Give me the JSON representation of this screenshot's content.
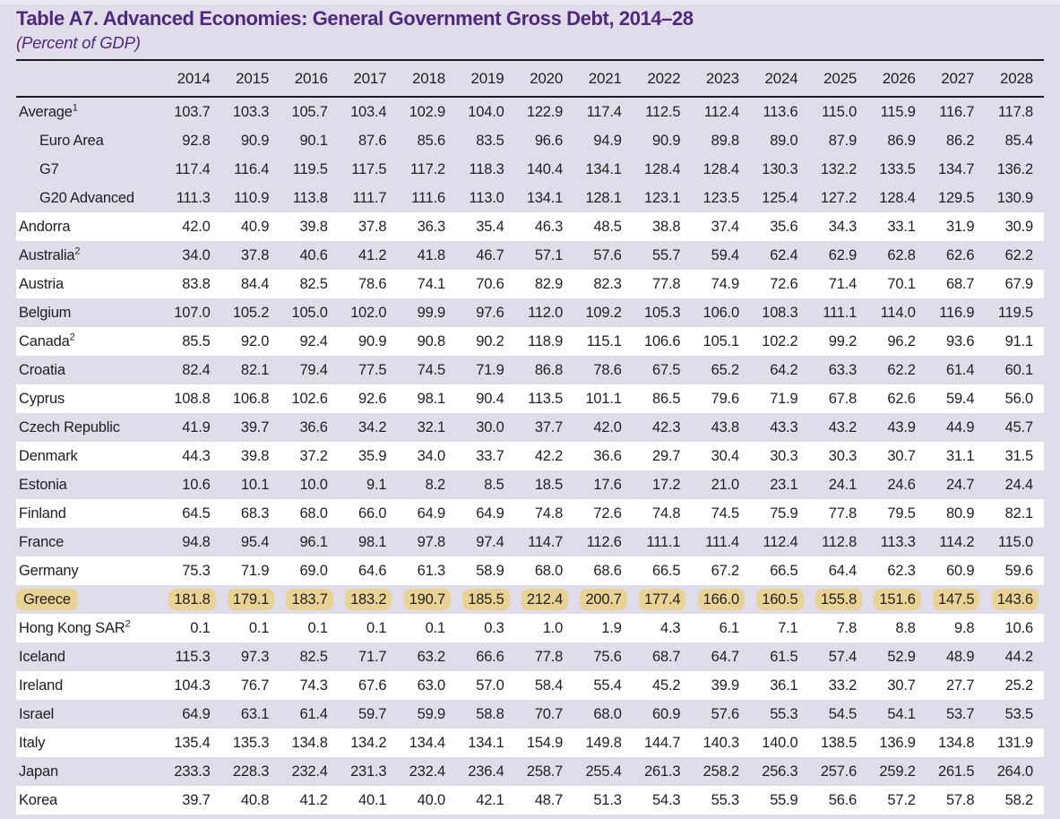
{
  "table": {
    "title": "Table A7. Advanced Economies: General Government Gross Debt, 2014–28",
    "subtitle": "(Percent of GDP)",
    "unit": "Percent of GDP",
    "years": [
      "2014",
      "2015",
      "2016",
      "2017",
      "2018",
      "2019",
      "2020",
      "2021",
      "2022",
      "2023",
      "2024",
      "2025",
      "2026",
      "2027",
      "2028"
    ],
    "rows": [
      {
        "label": "Average",
        "sup": "1",
        "aggregate": true,
        "indent": false,
        "highlight": false,
        "values": [
          "103.7",
          "103.3",
          "105.7",
          "103.4",
          "102.9",
          "104.0",
          "122.9",
          "117.4",
          "112.5",
          "112.4",
          "113.6",
          "115.0",
          "115.9",
          "116.7",
          "117.8"
        ]
      },
      {
        "label": "Euro Area",
        "sup": "",
        "aggregate": true,
        "indent": true,
        "highlight": false,
        "values": [
          "92.8",
          "90.9",
          "90.1",
          "87.6",
          "85.6",
          "83.5",
          "96.6",
          "94.9",
          "90.9",
          "89.8",
          "89.0",
          "87.9",
          "86.9",
          "86.2",
          "85.4"
        ]
      },
      {
        "label": "G7",
        "sup": "",
        "aggregate": true,
        "indent": true,
        "highlight": false,
        "values": [
          "117.4",
          "116.4",
          "119.5",
          "117.5",
          "117.2",
          "118.3",
          "140.4",
          "134.1",
          "128.4",
          "128.4",
          "130.3",
          "132.2",
          "133.5",
          "134.7",
          "136.2"
        ]
      },
      {
        "label": "G20 Advanced",
        "sup": "",
        "aggregate": true,
        "indent": true,
        "highlight": false,
        "values": [
          "111.3",
          "110.9",
          "113.8",
          "111.7",
          "111.6",
          "113.0",
          "134.1",
          "128.1",
          "123.1",
          "123.5",
          "125.4",
          "127.2",
          "128.4",
          "129.5",
          "130.9"
        ]
      },
      {
        "label": "Andorra",
        "sup": "",
        "aggregate": false,
        "indent": false,
        "highlight": false,
        "values": [
          "42.0",
          "40.9",
          "39.8",
          "37.8",
          "36.3",
          "35.4",
          "46.3",
          "48.5",
          "38.8",
          "37.4",
          "35.6",
          "34.3",
          "33.1",
          "31.9",
          "30.9"
        ]
      },
      {
        "label": "Australia",
        "sup": "2",
        "aggregate": false,
        "indent": false,
        "highlight": false,
        "values": [
          "34.0",
          "37.8",
          "40.6",
          "41.2",
          "41.8",
          "46.7",
          "57.1",
          "57.6",
          "55.7",
          "59.4",
          "62.4",
          "62.9",
          "62.8",
          "62.6",
          "62.2"
        ]
      },
      {
        "label": "Austria",
        "sup": "",
        "aggregate": false,
        "indent": false,
        "highlight": false,
        "values": [
          "83.8",
          "84.4",
          "82.5",
          "78.6",
          "74.1",
          "70.6",
          "82.9",
          "82.3",
          "77.8",
          "74.9",
          "72.6",
          "71.4",
          "70.1",
          "68.7",
          "67.9"
        ]
      },
      {
        "label": "Belgium",
        "sup": "",
        "aggregate": false,
        "indent": false,
        "highlight": false,
        "values": [
          "107.0",
          "105.2",
          "105.0",
          "102.0",
          "99.9",
          "97.6",
          "112.0",
          "109.2",
          "105.3",
          "106.0",
          "108.3",
          "111.1",
          "114.0",
          "116.9",
          "119.5"
        ]
      },
      {
        "label": "Canada",
        "sup": "2",
        "aggregate": false,
        "indent": false,
        "highlight": false,
        "values": [
          "85.5",
          "92.0",
          "92.4",
          "90.9",
          "90.8",
          "90.2",
          "118.9",
          "115.1",
          "106.6",
          "105.1",
          "102.2",
          "99.2",
          "96.2",
          "93.6",
          "91.1"
        ]
      },
      {
        "label": "Croatia",
        "sup": "",
        "aggregate": false,
        "indent": false,
        "highlight": false,
        "values": [
          "82.4",
          "82.1",
          "79.4",
          "77.5",
          "74.5",
          "71.9",
          "86.8",
          "78.6",
          "67.5",
          "65.2",
          "64.2",
          "63.3",
          "62.2",
          "61.4",
          "60.1"
        ]
      },
      {
        "label": "Cyprus",
        "sup": "",
        "aggregate": false,
        "indent": false,
        "highlight": false,
        "values": [
          "108.8",
          "106.8",
          "102.6",
          "92.6",
          "98.1",
          "90.4",
          "113.5",
          "101.1",
          "86.5",
          "79.6",
          "71.9",
          "67.8",
          "62.6",
          "59.4",
          "56.0"
        ]
      },
      {
        "label": "Czech Republic",
        "sup": "",
        "aggregate": false,
        "indent": false,
        "highlight": false,
        "values": [
          "41.9",
          "39.7",
          "36.6",
          "34.2",
          "32.1",
          "30.0",
          "37.7",
          "42.0",
          "42.3",
          "43.8",
          "43.3",
          "43.2",
          "43.9",
          "44.9",
          "45.7"
        ]
      },
      {
        "label": "Denmark",
        "sup": "",
        "aggregate": false,
        "indent": false,
        "highlight": false,
        "values": [
          "44.3",
          "39.8",
          "37.2",
          "35.9",
          "34.0",
          "33.7",
          "42.2",
          "36.6",
          "29.7",
          "30.4",
          "30.3",
          "30.3",
          "30.7",
          "31.1",
          "31.5"
        ]
      },
      {
        "label": "Estonia",
        "sup": "",
        "aggregate": false,
        "indent": false,
        "highlight": false,
        "values": [
          "10.6",
          "10.1",
          "10.0",
          "9.1",
          "8.2",
          "8.5",
          "18.5",
          "17.6",
          "17.2",
          "21.0",
          "23.1",
          "24.1",
          "24.6",
          "24.7",
          "24.4"
        ]
      },
      {
        "label": "Finland",
        "sup": "",
        "aggregate": false,
        "indent": false,
        "highlight": false,
        "values": [
          "64.5",
          "68.3",
          "68.0",
          "66.0",
          "64.9",
          "64.9",
          "74.8",
          "72.6",
          "74.8",
          "74.5",
          "75.9",
          "77.8",
          "79.5",
          "80.9",
          "82.1"
        ]
      },
      {
        "label": "France",
        "sup": "",
        "aggregate": false,
        "indent": false,
        "highlight": false,
        "values": [
          "94.8",
          "95.4",
          "96.1",
          "98.1",
          "97.8",
          "97.4",
          "114.7",
          "112.6",
          "111.1",
          "111.4",
          "112.4",
          "112.8",
          "113.3",
          "114.2",
          "115.0"
        ]
      },
      {
        "label": "Germany",
        "sup": "",
        "aggregate": false,
        "indent": false,
        "highlight": false,
        "values": [
          "75.3",
          "71.9",
          "69.0",
          "64.6",
          "61.3",
          "58.9",
          "68.0",
          "68.6",
          "66.5",
          "67.2",
          "66.5",
          "64.4",
          "62.3",
          "60.9",
          "59.6"
        ]
      },
      {
        "label": "Greece",
        "sup": "",
        "aggregate": false,
        "indent": false,
        "highlight": true,
        "values": [
          "181.8",
          "179.1",
          "183.7",
          "183.2",
          "190.7",
          "185.5",
          "212.4",
          "200.7",
          "177.4",
          "166.0",
          "160.5",
          "155.8",
          "151.6",
          "147.5",
          "143.6"
        ]
      },
      {
        "label": "Hong Kong SAR",
        "sup": "2",
        "aggregate": false,
        "indent": false,
        "highlight": false,
        "values": [
          "0.1",
          "0.1",
          "0.1",
          "0.1",
          "0.1",
          "0.3",
          "1.0",
          "1.9",
          "4.3",
          "6.1",
          "7.1",
          "7.8",
          "8.8",
          "9.8",
          "10.6"
        ]
      },
      {
        "label": "Iceland",
        "sup": "",
        "aggregate": false,
        "indent": false,
        "highlight": false,
        "values": [
          "115.3",
          "97.3",
          "82.5",
          "71.7",
          "63.2",
          "66.6",
          "77.8",
          "75.6",
          "68.7",
          "64.7",
          "61.5",
          "57.4",
          "52.9",
          "48.9",
          "44.2"
        ]
      },
      {
        "label": "Ireland",
        "sup": "",
        "aggregate": false,
        "indent": false,
        "highlight": false,
        "values": [
          "104.3",
          "76.7",
          "74.3",
          "67.6",
          "63.0",
          "57.0",
          "58.4",
          "55.4",
          "45.2",
          "39.9",
          "36.1",
          "33.2",
          "30.7",
          "27.7",
          "25.2"
        ]
      },
      {
        "label": "Israel",
        "sup": "",
        "aggregate": false,
        "indent": false,
        "highlight": false,
        "values": [
          "64.9",
          "63.1",
          "61.4",
          "59.7",
          "59.9",
          "58.8",
          "70.7",
          "68.0",
          "60.9",
          "57.6",
          "55.3",
          "54.5",
          "54.1",
          "53.7",
          "53.5"
        ]
      },
      {
        "label": "Italy",
        "sup": "",
        "aggregate": false,
        "indent": false,
        "highlight": false,
        "values": [
          "135.4",
          "135.3",
          "134.8",
          "134.2",
          "134.4",
          "134.1",
          "154.9",
          "149.8",
          "144.7",
          "140.3",
          "140.0",
          "138.5",
          "136.9",
          "134.8",
          "131.9"
        ]
      },
      {
        "label": "Japan",
        "sup": "",
        "aggregate": false,
        "indent": false,
        "highlight": false,
        "values": [
          "233.3",
          "228.3",
          "232.4",
          "231.3",
          "232.4",
          "236.4",
          "258.7",
          "255.4",
          "261.3",
          "258.2",
          "256.3",
          "257.6",
          "259.2",
          "261.5",
          "264.0"
        ]
      },
      {
        "label": "Korea",
        "sup": "",
        "aggregate": false,
        "indent": false,
        "highlight": false,
        "values": [
          "39.7",
          "40.8",
          "41.2",
          "40.1",
          "40.0",
          "42.1",
          "48.7",
          "51.3",
          "54.3",
          "55.3",
          "55.9",
          "56.6",
          "57.2",
          "57.8",
          "58.2"
        ]
      }
    ]
  },
  "colors": {
    "page_background": "#e0dce9",
    "stripe_white": "#ffffff",
    "title_purple": "#4d2a7d",
    "highlight_tan": "#e8d294",
    "rule_black": "#1c1a1b",
    "text": "#221e20"
  }
}
